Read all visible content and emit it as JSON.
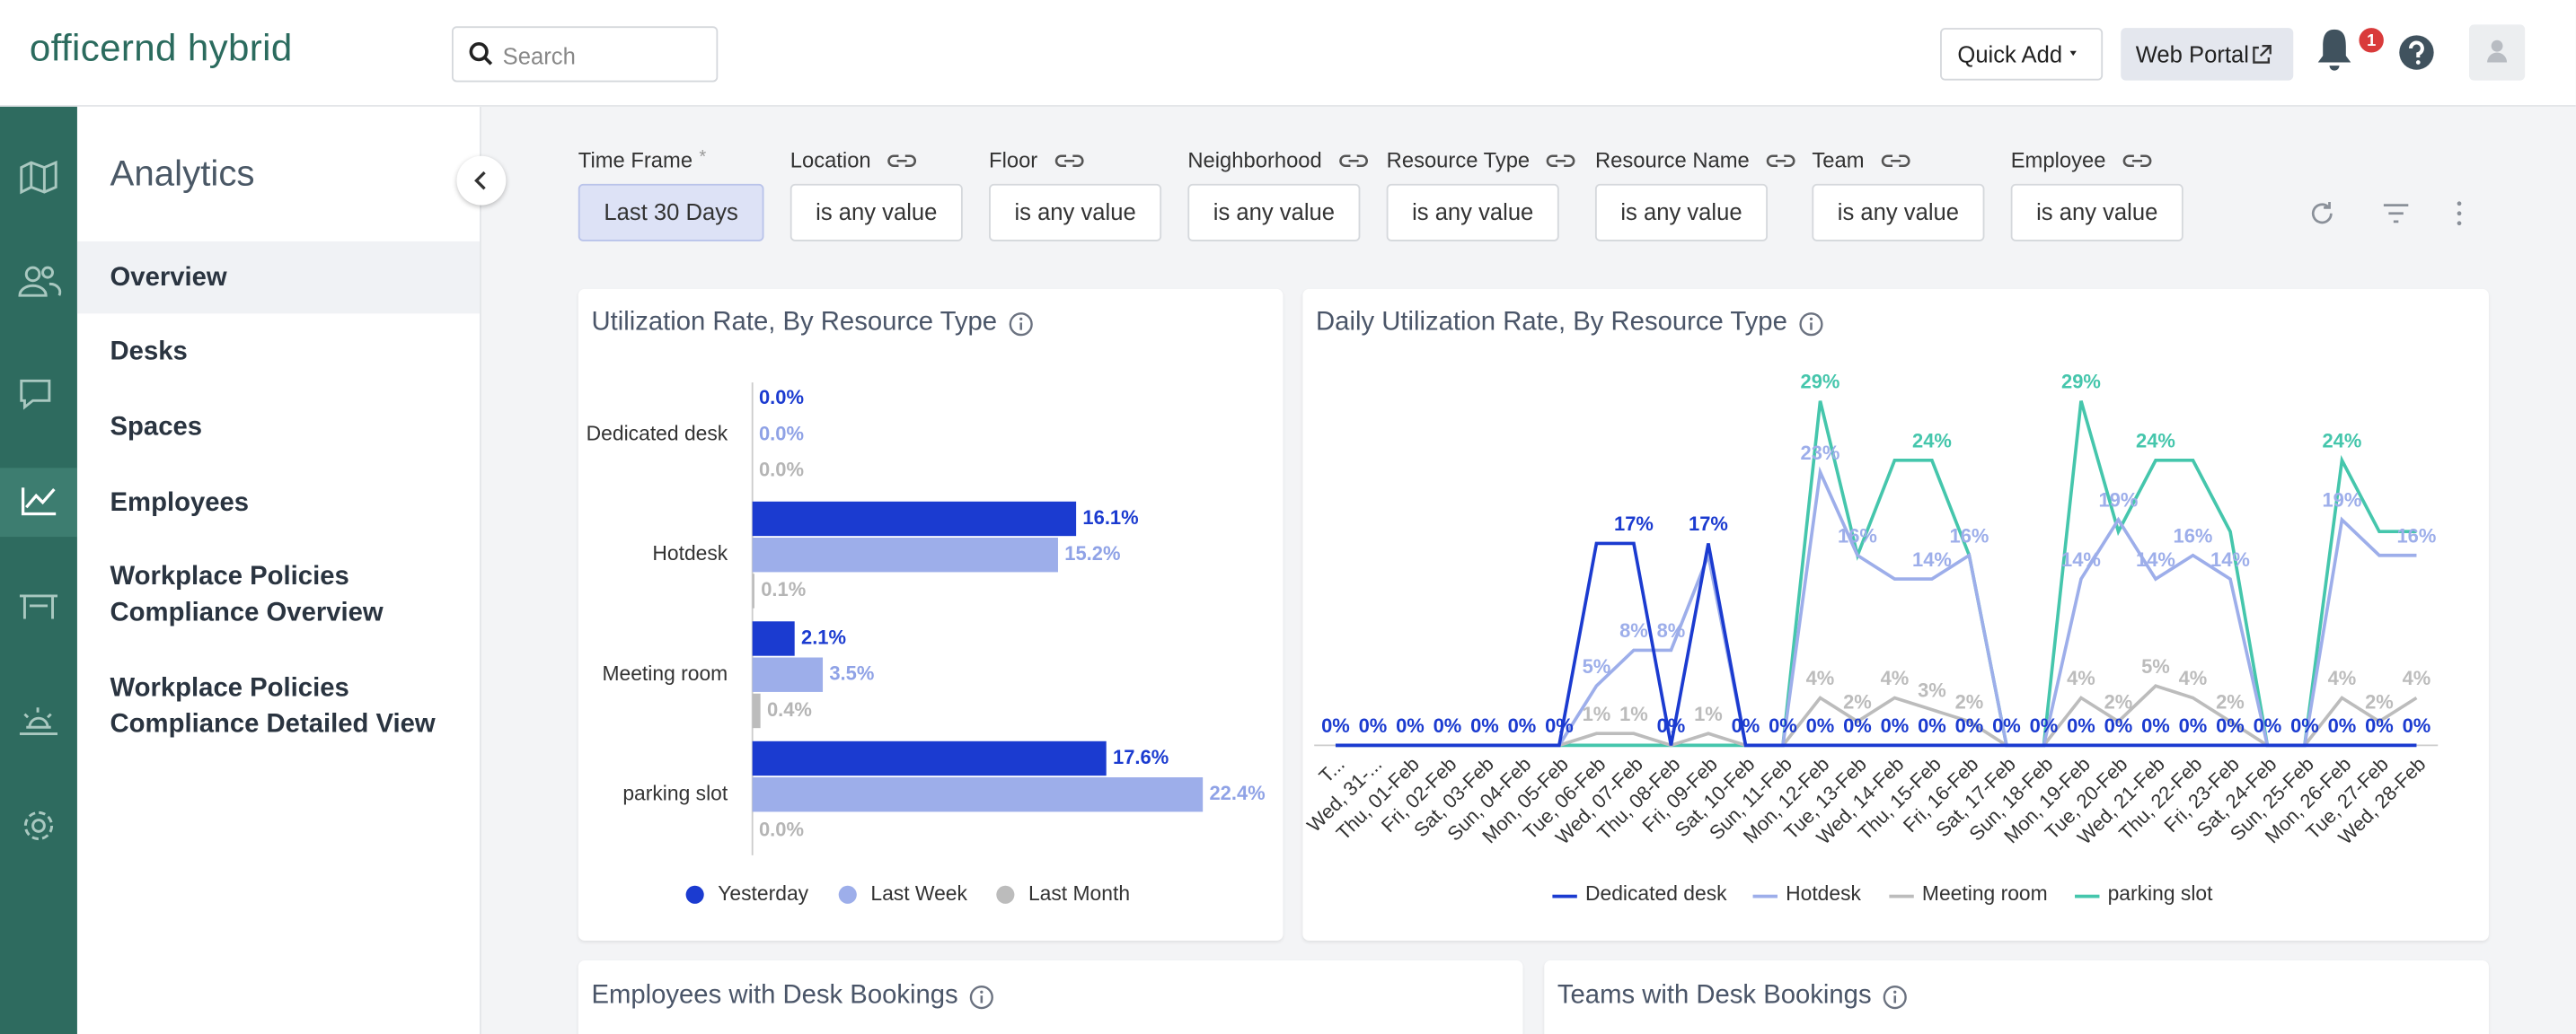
{
  "header": {
    "logo": "officernd hybrid",
    "search": "Search",
    "quick_add": "Quick Add",
    "web_portal": "Web Portal",
    "notifications": 1
  },
  "sidebar": {
    "title": "Analytics",
    "items": [
      "Overview",
      "Desks",
      "Spaces",
      "Employees",
      "Workplace Policies Compliance Overview",
      "Workplace Policies Compliance Detailed View"
    ]
  },
  "filters": [
    {
      "label": "Time Frame",
      "required": "*",
      "value": "Last 30 Days"
    },
    {
      "label": "Location",
      "value": "is any value"
    },
    {
      "label": "Floor",
      "value": "is any value"
    },
    {
      "label": "Neighborhood",
      "value": "is any value"
    },
    {
      "label": "Resource Type",
      "value": "is any value"
    },
    {
      "label": "Resource Name",
      "value": "is any value"
    },
    {
      "label": "Team",
      "value": "is any value"
    },
    {
      "label": "Employee",
      "value": "is any value"
    }
  ],
  "chart_data": [
    {
      "type": "hbar",
      "title": "Utilization Rate, By Resource Type",
      "categories": [
        "Dedicated desk",
        "Hotdesk",
        "Meeting room",
        "parking slot"
      ],
      "xlim": [
        0,
        25
      ],
      "legend": "bottom",
      "series": [
        {
          "name": "Yesterday",
          "color": "#1b3bd0",
          "values": [
            0,
            16.1,
            2.1,
            17.6
          ],
          "value_labels": [
            "0.0%",
            "16.1%",
            "2.1%",
            "17.6%"
          ]
        },
        {
          "name": "Last Week",
          "color": "#9daeea",
          "values": [
            0,
            15.2,
            3.5,
            22.4
          ],
          "value_labels": [
            "0.0%",
            "15.2%",
            "3.5%",
            "22.4%"
          ]
        },
        {
          "name": "Last Month",
          "color": "#bcbcbc",
          "values": [
            0,
            0.1,
            0.4,
            0
          ],
          "value_labels": [
            "0.0%",
            "0.1%",
            "0.4%",
            "0.0%"
          ]
        }
      ]
    },
    {
      "type": "line",
      "title": "Daily Utilization Rate, By Resource Type",
      "ylim": [
        0,
        30
      ],
      "legend": "bottom",
      "categories": [
        "T...",
        "Wed, 31-...",
        "Thu, 01-Feb",
        "Fri, 02-Feb",
        "Sat, 03-Feb",
        "Sun, 04-Feb",
        "Mon, 05-Feb",
        "Tue, 06-Feb",
        "Wed, 07-Feb",
        "Thu, 08-Feb",
        "Fri, 09-Feb",
        "Sat, 10-Feb",
        "Sun, 11-Feb",
        "Mon, 12-Feb",
        "Tue, 13-Feb",
        "Wed, 14-Feb",
        "Thu, 15-Feb",
        "Fri, 16-Feb",
        "Sat, 17-Feb",
        "Sun, 18-Feb",
        "Mon, 19-Feb",
        "Tue, 20-Feb",
        "Wed, 21-Feb",
        "Thu, 22-Feb",
        "Fri, 23-Feb",
        "Sat, 24-Feb",
        "Sun, 25-Feb",
        "Mon, 26-Feb",
        "Tue, 27-Feb",
        "Wed, 28-Feb"
      ],
      "series": [
        {
          "name": "Dedicated desk",
          "color": "#1b3bd0",
          "values": [
            0,
            0,
            0,
            0,
            0,
            0,
            0,
            17,
            17,
            0,
            17,
            0,
            0,
            0,
            0,
            0,
            0,
            0,
            0,
            0,
            0,
            0,
            0,
            0,
            0,
            0,
            0,
            0,
            0,
            0
          ],
          "value_labels": [
            "0%",
            "0%",
            "0%",
            "0%",
            "0%",
            "0%",
            "0%",
            null,
            "17%",
            "0%",
            "17%",
            "0%",
            "0%",
            "0%",
            "0%",
            "0%",
            "0%",
            "0%",
            "0%",
            "0%",
            "0%",
            "0%",
            "0%",
            "0%",
            "0%",
            "0%",
            "0%",
            "0%",
            "0%",
            "0%"
          ]
        },
        {
          "name": "Hotdesk",
          "color": "#9daeea",
          "values": [
            0,
            0,
            0,
            0,
            0,
            0,
            0,
            5,
            8,
            8,
            16,
            0,
            0,
            23,
            16,
            14,
            14,
            16,
            0,
            0,
            14,
            19,
            14,
            16,
            14,
            0,
            0,
            19,
            16,
            16
          ],
          "value_labels": [
            null,
            null,
            null,
            null,
            null,
            null,
            null,
            "5%",
            "8%",
            "8%",
            null,
            null,
            null,
            "23%",
            "16%",
            null,
            "14%",
            "16%",
            null,
            null,
            "14%",
            "19%",
            "14%",
            "16%",
            "14%",
            null,
            null,
            "19%",
            null,
            "16%"
          ]
        },
        {
          "name": "Meeting room",
          "color": "#bcbcbc",
          "values": [
            0,
            0,
            0,
            0,
            0,
            0,
            0,
            1,
            1,
            0,
            1,
            0,
            0,
            4,
            2,
            4,
            3,
            2,
            0,
            0,
            4,
            2,
            5,
            4,
            2,
            0,
            0,
            4,
            2,
            4
          ],
          "value_labels": [
            null,
            null,
            null,
            null,
            null,
            null,
            null,
            "1%",
            "1%",
            null,
            "1%",
            null,
            null,
            "4%",
            "2%",
            "4%",
            "3%",
            "2%",
            null,
            null,
            "4%",
            "2%",
            "5%",
            "4%",
            "2%",
            null,
            null,
            "4%",
            "2%",
            "4%"
          ]
        },
        {
          "name": "parking slot",
          "color": "#45c6ac",
          "values": [
            0,
            0,
            0,
            0,
            0,
            0,
            0,
            0,
            0,
            0,
            0,
            0,
            0,
            29,
            16,
            24,
            24,
            16,
            0,
            0,
            29,
            18,
            24,
            24,
            18,
            0,
            0,
            24,
            18,
            18
          ],
          "value_labels": [
            null,
            null,
            null,
            null,
            null,
            null,
            null,
            null,
            null,
            null,
            null,
            null,
            null,
            "29%",
            null,
            null,
            "24%",
            null,
            null,
            null,
            "29%",
            null,
            "24%",
            null,
            null,
            null,
            null,
            "24%",
            null,
            null
          ]
        }
      ]
    }
  ],
  "bottom_cards": [
    "Employees with Desk Bookings",
    "Teams with Desk Bookings"
  ]
}
